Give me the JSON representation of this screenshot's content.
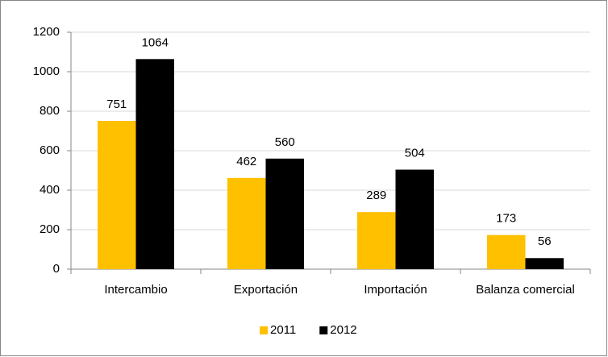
{
  "chart_data": {
    "type": "bar",
    "categories": [
      "Intercambio",
      "Exportación",
      "Importación",
      "Balanza comercial"
    ],
    "series": [
      {
        "name": "2011",
        "color": "#ffc000",
        "values": [
          751,
          462,
          289,
          173
        ]
      },
      {
        "name": "2012",
        "color": "#000000",
        "values": [
          1064,
          560,
          504,
          56
        ]
      }
    ],
    "ylim": [
      0,
      1200
    ],
    "yticks": [
      0,
      200,
      400,
      600,
      800,
      1000,
      1200
    ],
    "grid": true,
    "legend": "bottom",
    "data_labels": true
  }
}
